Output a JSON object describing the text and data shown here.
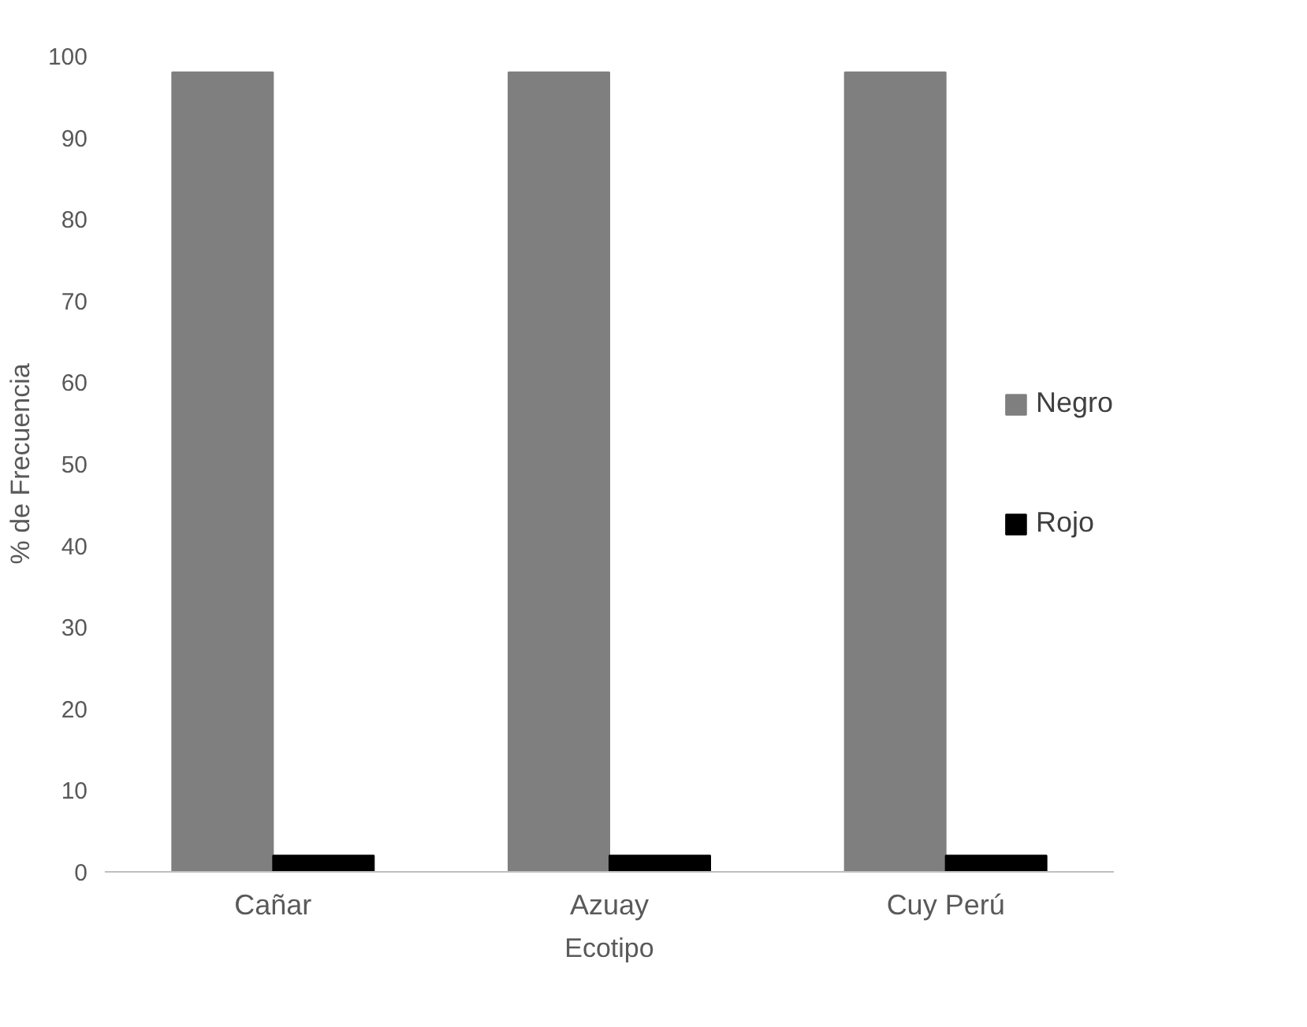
{
  "chart_data": {
    "type": "bar",
    "xlabel": "Ecotipo",
    "ylabel": "% de Frecuencia",
    "categories": [
      "Cañar",
      "Azuay",
      "Cuy Perú"
    ],
    "series": [
      {
        "name": "Negro",
        "color": "#7f7f7f",
        "values": [
          98,
          98,
          98
        ]
      },
      {
        "name": "Rojo",
        "color": "#000000",
        "values": [
          2,
          2,
          2
        ]
      }
    ],
    "ylim": [
      0,
      100
    ],
    "yticks": [
      0,
      10,
      20,
      30,
      40,
      50,
      60,
      70,
      80,
      90,
      100
    ],
    "grid": false,
    "legend": "right"
  }
}
